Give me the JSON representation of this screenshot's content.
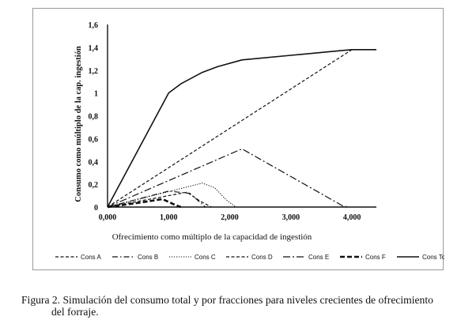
{
  "chart_data": {
    "type": "line",
    "title": "",
    "xlabel": "Ofrecimiento como múltiplo de la capacidad de  ingestión",
    "ylabel": "Consumo  como múltiplo de la cap.  ingestión",
    "xlim": [
      0,
      4.4
    ],
    "ylim": [
      0,
      1.6
    ],
    "x_ticks": [
      "0,000",
      "1,000",
      "2,000",
      "3,000",
      "4,000"
    ],
    "x_tick_values": [
      0,
      1,
      2,
      3,
      4
    ],
    "y_ticks": [
      "0",
      "0,2",
      "0,4",
      "0,6",
      "0,8",
      "1",
      "1,2",
      "1,4",
      "1,6"
    ],
    "y_tick_values": [
      0,
      0.2,
      0.4,
      0.6,
      0.8,
      1.0,
      1.2,
      1.4,
      1.6
    ],
    "grid": false,
    "legend_position": "bottom",
    "series": [
      {
        "name": "Cons A",
        "style": "dash",
        "points": [
          [
            0,
            0
          ],
          [
            4,
            1.38
          ]
        ]
      },
      {
        "name": "Cons B",
        "style": "dashdot",
        "points": [
          [
            0,
            0
          ],
          [
            1.0,
            0.14
          ],
          [
            1.35,
            0.12
          ],
          [
            1.6,
            0.0
          ]
        ]
      },
      {
        "name": "Cons C",
        "style": "dot",
        "points": [
          [
            0,
            0
          ],
          [
            1.55,
            0.21
          ],
          [
            1.75,
            0.17
          ],
          [
            1.95,
            0.06
          ],
          [
            2.1,
            0.0
          ]
        ]
      },
      {
        "name": "Cons D",
        "style": "dash",
        "points": [
          [
            0,
            0
          ],
          [
            1.3,
            0.13
          ],
          [
            1.52,
            0.05
          ],
          [
            1.7,
            0.0
          ]
        ]
      },
      {
        "name": "Cons E",
        "style": "dashdotlong",
        "points": [
          [
            0,
            0
          ],
          [
            2.2,
            0.51
          ],
          [
            3.85,
            0.01
          ],
          [
            3.95,
            0.0
          ]
        ]
      },
      {
        "name": "Cons F",
        "style": "thickdash",
        "points": [
          [
            0,
            0
          ],
          [
            0.55,
            0.04
          ],
          [
            0.9,
            0.07
          ],
          [
            1.1,
            0.02
          ],
          [
            1.2,
            0.0
          ]
        ]
      },
      {
        "name": "Cons Total",
        "style": "solid",
        "points": [
          [
            0,
            0
          ],
          [
            1.0,
            1.0
          ],
          [
            1.2,
            1.08
          ],
          [
            1.55,
            1.18
          ],
          [
            1.8,
            1.23
          ],
          [
            2.2,
            1.29
          ],
          [
            3.0,
            1.33
          ],
          [
            3.8,
            1.37
          ],
          [
            4.0,
            1.38
          ],
          [
            4.4,
            1.38
          ]
        ]
      }
    ]
  },
  "caption": {
    "line1": "Figura 2. Simulación del consumo total y por fracciones para niveles crecientes de ofrecimiento",
    "line2": "del forraje."
  }
}
